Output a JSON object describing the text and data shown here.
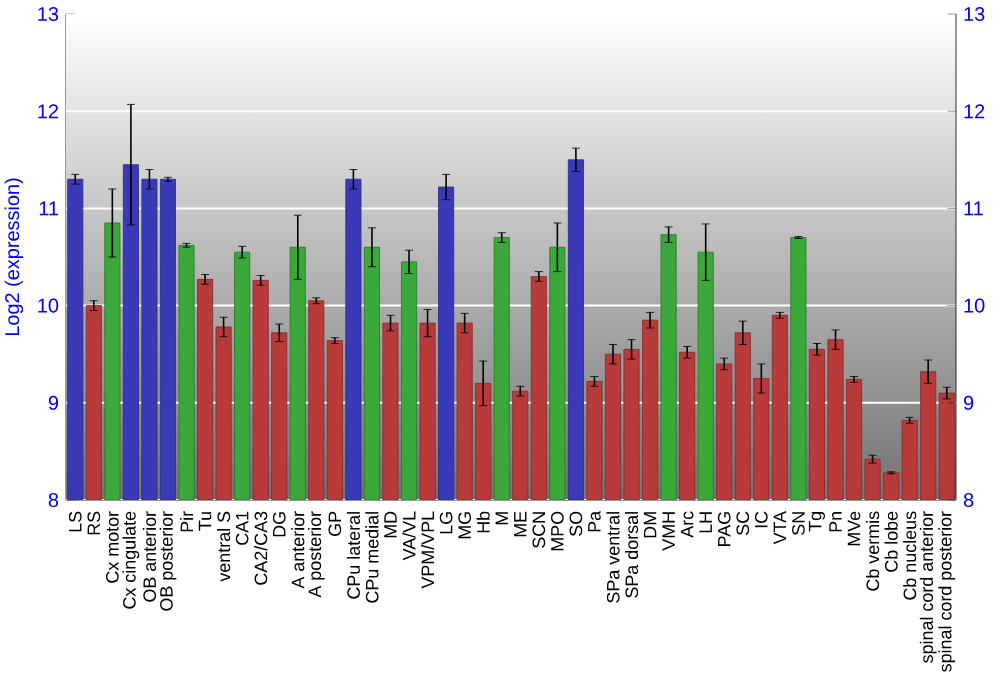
{
  "chart_data": {
    "type": "bar",
    "ylabel": "Log2 (expression)",
    "categories": [
      "LS",
      "RS",
      "Cx motor",
      "Cx cingulate",
      "OB anterior",
      "OB posterior",
      "Pir",
      "Tu",
      "ventral S",
      "CA1",
      "CA2/CA3",
      "DG",
      "A anterior",
      "A posterior",
      "GP",
      "CPu lateral",
      "CPu medial",
      "MD",
      "VA/VL",
      "VPM/VPL",
      "LG",
      "MG",
      "Hb",
      "M",
      "ME",
      "SCN",
      "MPO",
      "SO",
      "Pa",
      "SPa ventral",
      "SPa dorsal",
      "DM",
      "VMH",
      "Arc",
      "LH",
      "PAG",
      "SC",
      "IC",
      "VTA",
      "SN",
      "Tg",
      "Pn",
      "MVe",
      "Cb vermis",
      "Cb lobe",
      "Cb nucleus",
      "spinal cord anterior",
      "spinal cord posterior"
    ],
    "values": [
      11.3,
      10.0,
      10.85,
      11.45,
      11.3,
      11.3,
      10.62,
      10.27,
      9.78,
      10.55,
      10.26,
      9.72,
      10.6,
      10.05,
      9.64,
      11.3,
      10.6,
      9.82,
      10.45,
      9.82,
      11.22,
      9.82,
      9.2,
      10.7,
      9.12,
      10.3,
      10.6,
      11.5,
      9.22,
      9.5,
      9.55,
      9.85,
      10.73,
      9.52,
      10.55,
      9.4,
      9.72,
      9.25,
      9.9,
      10.7,
      9.55,
      9.65,
      9.24,
      8.42,
      8.28,
      8.82,
      9.32,
      9.1
    ],
    "errors": [
      0.05,
      0.05,
      0.35,
      0.62,
      0.1,
      0.02,
      0.02,
      0.05,
      0.1,
      0.06,
      0.05,
      0.09,
      0.33,
      0.03,
      0.03,
      0.1,
      0.2,
      0.08,
      0.12,
      0.14,
      0.13,
      0.1,
      0.23,
      0.05,
      0.05,
      0.05,
      0.25,
      0.12,
      0.05,
      0.1,
      0.1,
      0.08,
      0.08,
      0.06,
      0.29,
      0.06,
      0.12,
      0.15,
      0.03,
      0.01,
      0.06,
      0.1,
      0.03,
      0.04,
      0.01,
      0.03,
      0.12,
      0.06
    ],
    "colors": [
      "#3a3ab8",
      "#b83a3a",
      "#3aa83a",
      "#3a3ab8",
      "#3a3ab8",
      "#3a3ab8",
      "#3aa83a",
      "#b83a3a",
      "#b83a3a",
      "#3aa83a",
      "#b83a3a",
      "#b83a3a",
      "#3aa83a",
      "#b83a3a",
      "#b83a3a",
      "#3a3ab8",
      "#3aa83a",
      "#b83a3a",
      "#3aa83a",
      "#b83a3a",
      "#3a3ab8",
      "#b83a3a",
      "#b83a3a",
      "#3aa83a",
      "#b83a3a",
      "#b83a3a",
      "#3aa83a",
      "#3a3ab8",
      "#b83a3a",
      "#b83a3a",
      "#b83a3a",
      "#b83a3a",
      "#3aa83a",
      "#b83a3a",
      "#3aa83a",
      "#b83a3a",
      "#b83a3a",
      "#b83a3a",
      "#b83a3a",
      "#3aa83a",
      "#b83a3a",
      "#b83a3a",
      "#b83a3a",
      "#b83a3a",
      "#b83a3a",
      "#b83a3a",
      "#b83a3a",
      "#b83a3a"
    ],
    "ylim": [
      8,
      13
    ],
    "yticks": [
      8,
      9,
      10,
      11,
      12,
      13
    ],
    "y2lim": [
      8,
      13
    ],
    "y2ticks": [
      8,
      9,
      10,
      11,
      12,
      13
    ],
    "grid": "y"
  }
}
